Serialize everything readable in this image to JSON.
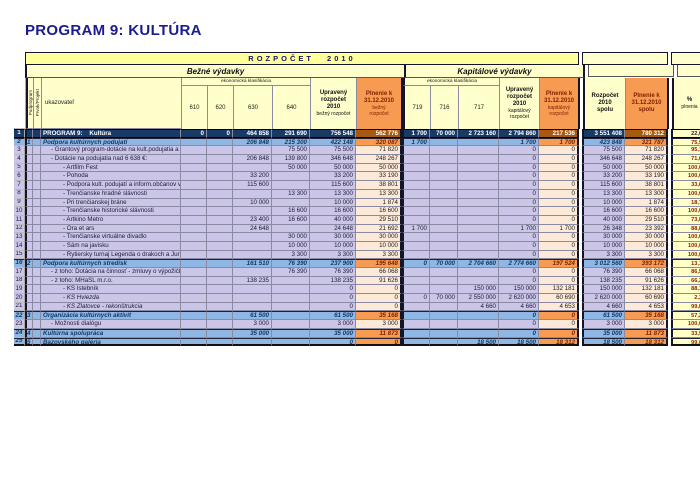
{
  "title": "PROGRAM 9:  KULTÚRA",
  "banner": "ROZPOČET  2010",
  "header": {
    "bezne": "Bežné výdavky",
    "kapitalove": "Kapitálové výdavky",
    "ekonomicka": "ekonomická klasifikácia",
    "podprogram": "Podprogram",
    "prvok": "Prvok/Projekt",
    "ukazovatel": "ukazovateľ",
    "codes_bezne": [
      "610",
      "620",
      "630",
      "640"
    ],
    "codes_kapital": [
      "719",
      "716",
      "717"
    ],
    "upraveny_bezny": {
      "main": [
        "Upravený",
        "rozpočet",
        "2010"
      ],
      "sub": [
        "bežný rozpočet"
      ]
    },
    "plnenie_bezny": {
      "main": [
        "Plnenie k",
        "31.12.2010"
      ],
      "sub": [
        "bežný",
        "rozpočet"
      ]
    },
    "upraveny_kapital": {
      "main": [
        "Upravený",
        "rozpočet",
        "2010"
      ],
      "sub": [
        "kapitálový",
        "rozpočet"
      ]
    },
    "plnenie_kapital": {
      "main": [
        "Plnenie k",
        "31.12.2010"
      ],
      "sub": [
        "kapitálový",
        "rozpočet"
      ]
    },
    "rozpocet_spolu": {
      "main": [
        "Rozpočet",
        "2010",
        "spolu"
      ],
      "sub": []
    },
    "plnenie_spolu": {
      "main": [
        "Plnenie k",
        "31.12.2010",
        "spolu"
      ],
      "sub": []
    },
    "percent": {
      "main": [
        "%"
      ],
      "sub": [
        "plnenia"
      ]
    }
  },
  "rows": [
    {
      "n": "1",
      "p": "",
      "t": "total",
      "i": 0,
      "it": false,
      "label": "PROGRAM 9:    Kultúra",
      "v": [
        "0",
        "0",
        "464 858",
        "291 690",
        "756 548",
        "562 776",
        "1 700",
        "70 000",
        "2 723 160",
        "2 794 860",
        "217 536",
        "3 551 408",
        "780 312",
        "22,0"
      ]
    },
    {
      "n": "2",
      "p": "1",
      "t": "sec",
      "i": 0,
      "it": false,
      "label": "Podpora kultúrnych podujatí",
      "v": [
        "",
        "",
        "206 848",
        "215 300",
        "422 148",
        "320 087",
        "1 700",
        "",
        "",
        "1 700",
        "1 700",
        "423 848",
        "321 787",
        "75,9"
      ]
    },
    {
      "n": "3",
      "p": "",
      "t": "det",
      "i": 1,
      "it": false,
      "label": "- Grantový program-dotácie na kult.podujatia a činnosť",
      "v": [
        "",
        "",
        "",
        "75 500",
        "75 500",
        "71 820",
        "",
        "",
        "",
        "0",
        "0",
        "75 500",
        "71 820",
        "95,1"
      ]
    },
    {
      "n": "4",
      "p": "",
      "t": "det",
      "i": 1,
      "it": false,
      "label": "- Dotácie na podujatia nad 6 638 €:",
      "v": [
        "",
        "",
        "206 848",
        "139 800",
        "346 648",
        "248 267",
        "",
        "",
        "",
        "0",
        "0",
        "346 648",
        "248 267",
        "71,6"
      ]
    },
    {
      "n": "5",
      "p": "",
      "t": "det",
      "i": 2,
      "it": false,
      "label": "- Artfilm Fest",
      "v": [
        "",
        "",
        "",
        "50 000",
        "50 000",
        "50 000",
        "",
        "",
        "",
        "0",
        "0",
        "50 000",
        "50 000",
        "100,0"
      ]
    },
    {
      "n": "6",
      "p": "",
      "t": "det",
      "i": 2,
      "it": false,
      "label": "- Pohoda",
      "v": [
        "",
        "",
        "33 200",
        "",
        "33 200",
        "33 190",
        "",
        "",
        "",
        "0",
        "0",
        "33 200",
        "33 190",
        "100,0"
      ]
    },
    {
      "n": "7",
      "p": "",
      "t": "det",
      "i": 2,
      "it": false,
      "label": "- Podpora kult. podujatí a inform.občanov v MČ",
      "v": [
        "",
        "",
        "115 600",
        "",
        "115 600",
        "38 801",
        "",
        "",
        "",
        "0",
        "0",
        "115 600",
        "38 801",
        "33,6"
      ]
    },
    {
      "n": "8",
      "p": "",
      "t": "det",
      "i": 2,
      "it": false,
      "label": "- Trenčianske hradné slávnosti",
      "v": [
        "",
        "",
        "",
        "13 300",
        "13 300",
        "13 300",
        "",
        "",
        "",
        "0",
        "0",
        "13 300",
        "13 300",
        "100,0"
      ]
    },
    {
      "n": "9",
      "p": "",
      "t": "det",
      "i": 2,
      "it": false,
      "label": "- Pri trenčianskej bráne",
      "v": [
        "",
        "",
        "10 000",
        "",
        "10 000",
        "1 874",
        "",
        "",
        "",
        "0",
        "0",
        "10 000",
        "1 874",
        "18,7"
      ]
    },
    {
      "n": "10",
      "p": "",
      "t": "det",
      "i": 2,
      "it": false,
      "label": "- Trenčianske historické slávnosti",
      "v": [
        "",
        "",
        "",
        "16 600",
        "16 600",
        "16 600",
        "",
        "",
        "",
        "0",
        "0",
        "16 600",
        "16 600",
        "100,0"
      ]
    },
    {
      "n": "11",
      "p": "",
      "t": "det",
      "i": 2,
      "it": false,
      "label": "- Artkino Metro",
      "v": [
        "",
        "",
        "23 400",
        "16 600",
        "40 000",
        "29 510",
        "",
        "",
        "",
        "0",
        "0",
        "40 000",
        "29 510",
        "73,8"
      ]
    },
    {
      "n": "12",
      "p": "",
      "t": "det",
      "i": 2,
      "it": false,
      "label": "- Ora et ars",
      "v": [
        "",
        "",
        "24 648",
        "",
        "24 648",
        "21 692",
        "1 700",
        "",
        "",
        "1 700",
        "1 700",
        "26 348",
        "23 392",
        "88,8"
      ]
    },
    {
      "n": "13",
      "p": "",
      "t": "det",
      "i": 2,
      "it": false,
      "label": "- Trenčianske virtuálne divadlo",
      "v": [
        "",
        "",
        "",
        "30 000",
        "30 000",
        "30 000",
        "",
        "",
        "",
        "0",
        "0",
        "30 000",
        "30 000",
        "100,0"
      ]
    },
    {
      "n": "14",
      "p": "",
      "t": "det",
      "i": 2,
      "it": false,
      "label": "- Sám na javisku",
      "v": [
        "",
        "",
        "",
        "10 000",
        "10 000",
        "10 000",
        "",
        "",
        "",
        "0",
        "0",
        "10 000",
        "10 000",
        "100,0"
      ]
    },
    {
      "n": "15",
      "p": "",
      "t": "det",
      "i": 2,
      "it": false,
      "label": "- Rytiersky turnaj Legenda o drakoch a Jurajovi",
      "v": [
        "",
        "",
        "",
        "3 300",
        "3 300",
        "3 300",
        "",
        "",
        "",
        "0",
        "0",
        "3 300",
        "3 300",
        "100,0"
      ]
    },
    {
      "n": "16",
      "p": "2",
      "t": "sec",
      "i": 0,
      "it": false,
      "label": "Podpora kultúrnych stredísk",
      "v": [
        "",
        "",
        "161 510",
        "76 390",
        "237 900",
        "195 648",
        "0",
        "70 000",
        "2 704 660",
        "2 774 660",
        "197 524",
        "3 012 560",
        "393 172",
        "13,1"
      ]
    },
    {
      "n": "17",
      "p": "",
      "t": "det",
      "i": 1,
      "it": false,
      "label": "- z toho: Dotácia na činnosť - zmluvy o výpožičke",
      "v": [
        "",
        "",
        "",
        "76 390",
        "76 390",
        "66 068",
        "",
        "",
        "",
        "0",
        "0",
        "76 390",
        "66 068",
        "86,5"
      ]
    },
    {
      "n": "18",
      "p": "",
      "t": "det",
      "i": 1,
      "it": false,
      "label": "- z toho: MHaSL m.r.o.",
      "v": [
        "",
        "",
        "138 235",
        "",
        "138 235",
        "91 626",
        "",
        "",
        "",
        "0",
        "0",
        "138 235",
        "91 626",
        "66,3"
      ]
    },
    {
      "n": "19",
      "p": "",
      "t": "det",
      "i": 2,
      "it": false,
      "label": "- KS Istebník",
      "v": [
        "",
        "",
        "",
        "",
        "0",
        "0",
        "",
        "",
        "150 000",
        "150 000",
        "132 181",
        "150 000",
        "132 181",
        "88,1"
      ]
    },
    {
      "n": "20",
      "p": "",
      "t": "det",
      "i": 2,
      "it": true,
      "label": "- KS Hviezda",
      "v": [
        "",
        "",
        "",
        "",
        "0",
        "0",
        "0",
        "70 000",
        "2 550 000",
        "2 620 000",
        "60 690",
        "2 620 000",
        "60 690",
        "2,3"
      ]
    },
    {
      "n": "21",
      "p": "",
      "t": "det",
      "i": 2,
      "it": true,
      "label": "- KS Zlatovce - rekonštrukcia",
      "v": [
        "",
        "",
        "",
        "",
        "0",
        "0",
        "",
        "",
        "4 660",
        "4 660",
        "4 653",
        "4 660",
        "4 653",
        "99,8"
      ]
    },
    {
      "n": "22",
      "p": "3",
      "t": "sec",
      "i": 0,
      "it": false,
      "label": "Organizácia kultúrnych aktivít",
      "v": [
        "",
        "",
        "61 500",
        "",
        "61 500",
        "35 168",
        "",
        "",
        "",
        "0",
        "0",
        "61 500",
        "35 168",
        "57,2"
      ]
    },
    {
      "n": "23",
      "p": "",
      "t": "det",
      "i": 1,
      "it": false,
      "label": "- Možnosti dialógu",
      "v": [
        "",
        "",
        "3 000",
        "",
        "3 000",
        "3 000",
        "",
        "",
        "",
        "0",
        "0",
        "3 000",
        "3 000",
        "100,0"
      ]
    },
    {
      "n": "24",
      "p": "4",
      "t": "sec",
      "i": 0,
      "it": false,
      "label": "Kultúrna spolupráca",
      "v": [
        "",
        "",
        "35 000",
        "",
        "35 000",
        "11 873",
        "",
        "",
        "",
        "0",
        "0",
        "35 000",
        "11 873",
        "33,9"
      ]
    },
    {
      "n": "25",
      "p": "5",
      "t": "sec",
      "i": 0,
      "it": false,
      "label": "Bazovského galéria",
      "v": [
        "",
        "",
        "",
        "",
        "0",
        "0",
        "",
        "",
        "18 500",
        "18 500",
        "18 312",
        "18 500",
        "18 312",
        "99,0"
      ]
    }
  ]
}
